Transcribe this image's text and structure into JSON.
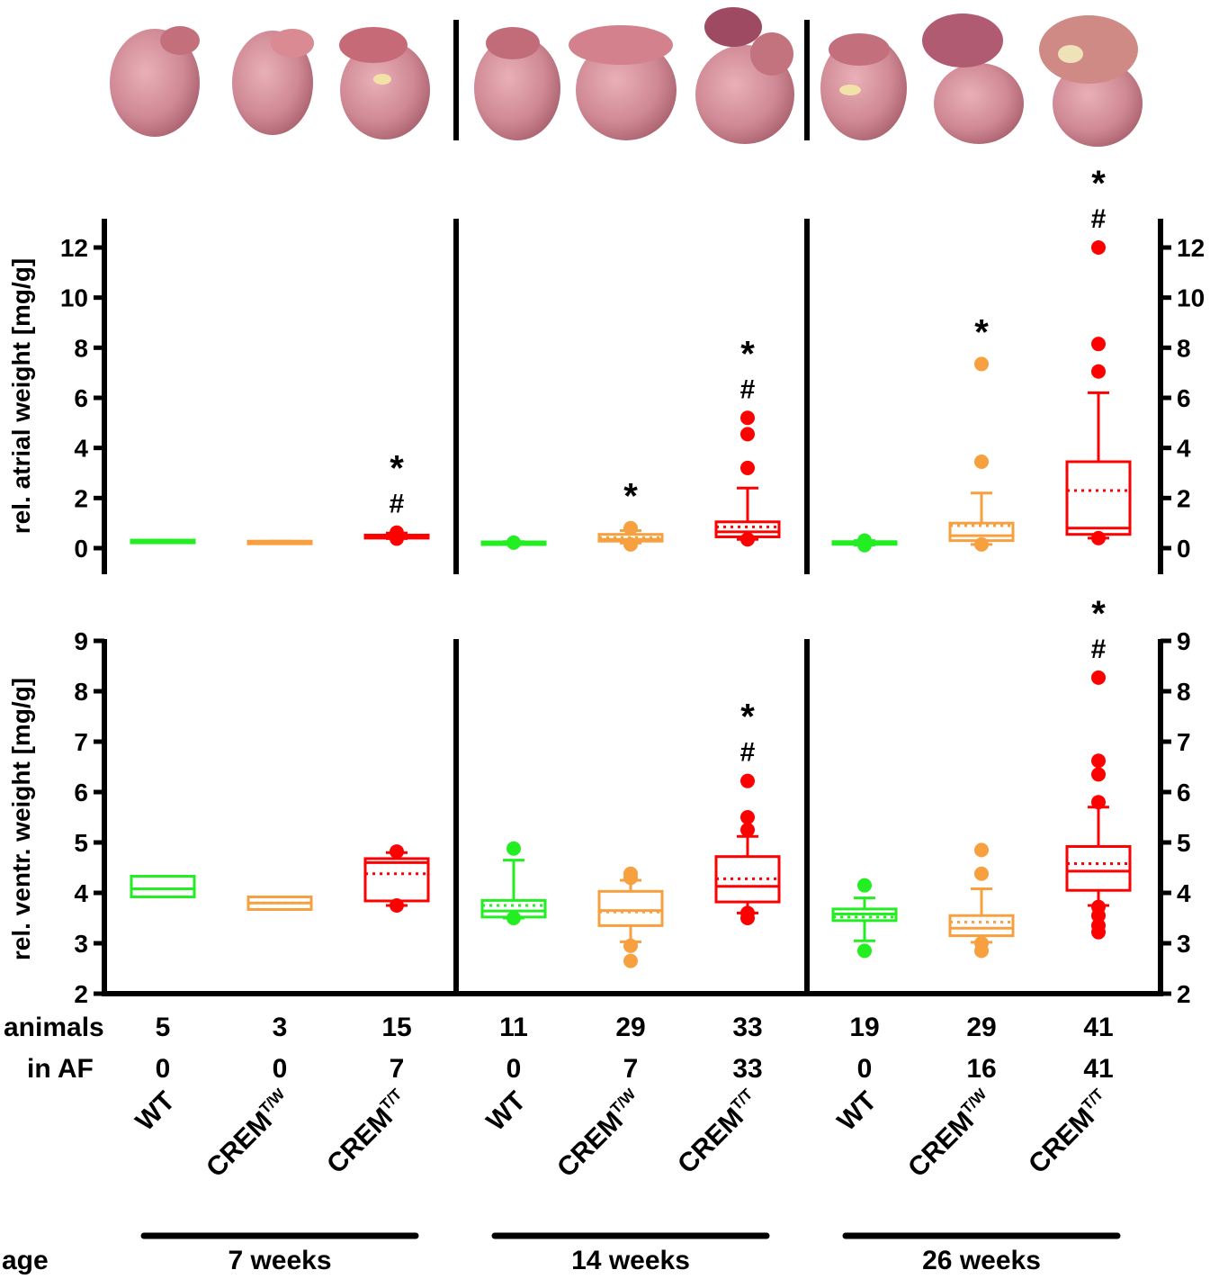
{
  "colors": {
    "wt": "#22ee22",
    "het": "#f7a040",
    "hom": "#ff0000",
    "axis": "#000000"
  },
  "heart_photos": [
    {
      "group": "7 weeks",
      "genotype": "WT"
    },
    {
      "group": "7 weeks",
      "genotype": "CREM T/W"
    },
    {
      "group": "7 weeks",
      "genotype": "CREM T/T"
    },
    {
      "group": "14 weeks",
      "genotype": "WT"
    },
    {
      "group": "14 weeks",
      "genotype": "CREM T/W"
    },
    {
      "group": "14 weeks",
      "genotype": "CREM T/T"
    },
    {
      "group": "26 weeks",
      "genotype": "WT"
    },
    {
      "group": "26 weeks",
      "genotype": "CREM T/W"
    },
    {
      "group": "26 weeks",
      "genotype": "CREM T/T"
    }
  ],
  "rows": {
    "animals_label": "animals",
    "in_af_label": "in AF",
    "age_label": "age"
  },
  "animals": [
    "5",
    "3",
    "15",
    "11",
    "29",
    "33",
    "19",
    "29",
    "41"
  ],
  "in_af": [
    "0",
    "0",
    "7",
    "0",
    "7",
    "33",
    "0",
    "16",
    "41"
  ],
  "genotypes": [
    {
      "base": "WT",
      "sup": ""
    },
    {
      "base": "CREM",
      "sup": "T/W"
    },
    {
      "base": "CREM",
      "sup": "T/T"
    },
    {
      "base": "WT",
      "sup": ""
    },
    {
      "base": "CREM",
      "sup": "T/W"
    },
    {
      "base": "CREM",
      "sup": "T/T"
    },
    {
      "base": "WT",
      "sup": ""
    },
    {
      "base": "CREM",
      "sup": "T/W"
    },
    {
      "base": "CREM",
      "sup": "T/T"
    }
  ],
  "ages": [
    "7 weeks",
    "14 weeks",
    "26 weeks"
  ],
  "chart_data": [
    {
      "type": "box",
      "id": "atrial",
      "ylabel": "rel. atrial weight [mg/g]",
      "ylim": [
        -1,
        13.5
      ],
      "yticks": [
        0,
        2,
        4,
        6,
        8,
        10,
        12
      ],
      "boxes": [
        {
          "group": "7 weeks",
          "genotype": "WT",
          "q1": 0.28,
          "median": 0.3,
          "q3": 0.32,
          "mean": 0.3,
          "whisker_low": 0.28,
          "whisker_high": 0.32,
          "outliers": []
        },
        {
          "group": "7 weeks",
          "genotype": "CREM T/W",
          "q1": 0.26,
          "median": 0.27,
          "q3": 0.28,
          "mean": 0.27,
          "whisker_low": 0.26,
          "whisker_high": 0.28,
          "outliers": []
        },
        {
          "group": "7 weeks",
          "genotype": "CREM T/T",
          "q1": 0.4,
          "median": 0.45,
          "q3": 0.52,
          "mean": 0.47,
          "whisker_low": 0.38,
          "whisker_high": 0.6,
          "outliers": [
            0.38,
            0.62
          ],
          "marks": "*#"
        },
        {
          "group": "14 weeks",
          "genotype": "WT",
          "q1": 0.21,
          "median": 0.23,
          "q3": 0.25,
          "mean": 0.23,
          "whisker_low": 0.2,
          "whisker_high": 0.26,
          "outliers": [
            0.22
          ]
        },
        {
          "group": "14 weeks",
          "genotype": "CREM T/W",
          "q1": 0.28,
          "median": 0.35,
          "q3": 0.55,
          "mean": 0.42,
          "whisker_low": 0.2,
          "whisker_high": 0.7,
          "outliers": [
            0.15,
            0.8
          ],
          "marks": "*"
        },
        {
          "group": "14 weeks",
          "genotype": "CREM T/T",
          "q1": 0.45,
          "median": 0.65,
          "q3": 1.05,
          "mean": 0.85,
          "whisker_low": 0.35,
          "whisker_high": 2.4,
          "outliers": [
            0.35,
            3.2,
            4.55,
            5.2
          ],
          "marks": "*#"
        },
        {
          "group": "26 weeks",
          "genotype": "WT",
          "q1": 0.18,
          "median": 0.22,
          "q3": 0.26,
          "mean": 0.22,
          "whisker_low": 0.12,
          "whisker_high": 0.3,
          "outliers": [
            0.12,
            0.3
          ]
        },
        {
          "group": "26 weeks",
          "genotype": "CREM T/W",
          "q1": 0.3,
          "median": 0.5,
          "q3": 1.0,
          "mean": 0.9,
          "whisker_low": 0.15,
          "whisker_high": 2.2,
          "outliers": [
            0.15,
            3.45,
            7.35
          ],
          "marks": "*"
        },
        {
          "group": "26 weeks",
          "genotype": "CREM T/T",
          "q1": 0.55,
          "median": 0.8,
          "q3": 3.45,
          "mean": 2.3,
          "whisker_low": 0.4,
          "whisker_high": 6.2,
          "outliers": [
            0.4,
            7.05,
            8.15,
            12.0
          ],
          "marks": "*#"
        }
      ]
    },
    {
      "type": "box",
      "id": "ventricular",
      "ylabel": "rel. ventr. weight [mg/g]",
      "ylim": [
        2,
        9
      ],
      "yticks": [
        2,
        3,
        4,
        5,
        6,
        7,
        8,
        9
      ],
      "boxes": [
        {
          "group": "7 weeks",
          "genotype": "WT",
          "q1": 3.92,
          "median": 4.08,
          "q3": 4.33,
          "mean": 4.08,
          "whisker_low": 3.92,
          "whisker_high": 4.33,
          "outliers": []
        },
        {
          "group": "7 weeks",
          "genotype": "CREM T/W",
          "q1": 3.67,
          "median": 3.8,
          "q3": 3.92,
          "mean": 3.8,
          "whisker_low": 3.67,
          "whisker_high": 3.92,
          "outliers": []
        },
        {
          "group": "7 weeks",
          "genotype": "CREM T/T",
          "q1": 3.84,
          "median": 4.6,
          "q3": 4.68,
          "mean": 4.38,
          "whisker_low": 3.75,
          "whisker_high": 4.8,
          "outliers": [
            3.75,
            4.82
          ]
        },
        {
          "group": "14 weeks",
          "genotype": "WT",
          "q1": 3.52,
          "median": 3.64,
          "q3": 3.85,
          "mean": 3.75,
          "whisker_low": 3.5,
          "whisker_high": 4.65,
          "outliers": [
            3.5,
            4.88
          ]
        },
        {
          "group": "14 weeks",
          "genotype": "CREM T/W",
          "q1": 3.35,
          "median": 3.65,
          "q3": 4.03,
          "mean": 3.62,
          "whisker_low": 3.03,
          "whisker_high": 4.25,
          "outliers": [
            2.65,
            2.95,
            4.3,
            4.38
          ]
        },
        {
          "group": "14 weeks",
          "genotype": "CREM T/T",
          "q1": 3.82,
          "median": 4.13,
          "q3": 4.72,
          "mean": 4.28,
          "whisker_low": 3.6,
          "whisker_high": 5.12,
          "outliers": [
            3.5,
            3.6,
            5.25,
            5.5,
            6.22
          ],
          "marks": "*#"
        },
        {
          "group": "26 weeks",
          "genotype": "WT",
          "q1": 3.45,
          "median": 3.58,
          "q3": 3.68,
          "mean": 3.52,
          "whisker_low": 3.05,
          "whisker_high": 3.9,
          "outliers": [
            2.85,
            4.15
          ]
        },
        {
          "group": "26 weeks",
          "genotype": "CREM T/W",
          "q1": 3.15,
          "median": 3.3,
          "q3": 3.55,
          "mean": 3.42,
          "whisker_low": 3.02,
          "whisker_high": 4.08,
          "outliers": [
            2.85,
            3.0,
            4.38,
            4.85
          ]
        },
        {
          "group": "26 weeks",
          "genotype": "CREM T/T",
          "q1": 4.05,
          "median": 4.43,
          "q3": 4.92,
          "mean": 4.58,
          "whisker_low": 3.75,
          "whisker_high": 5.7,
          "outliers": [
            3.22,
            3.35,
            3.55,
            3.72,
            5.8,
            6.35,
            6.62,
            8.27
          ],
          "marks": "*#"
        }
      ]
    }
  ]
}
